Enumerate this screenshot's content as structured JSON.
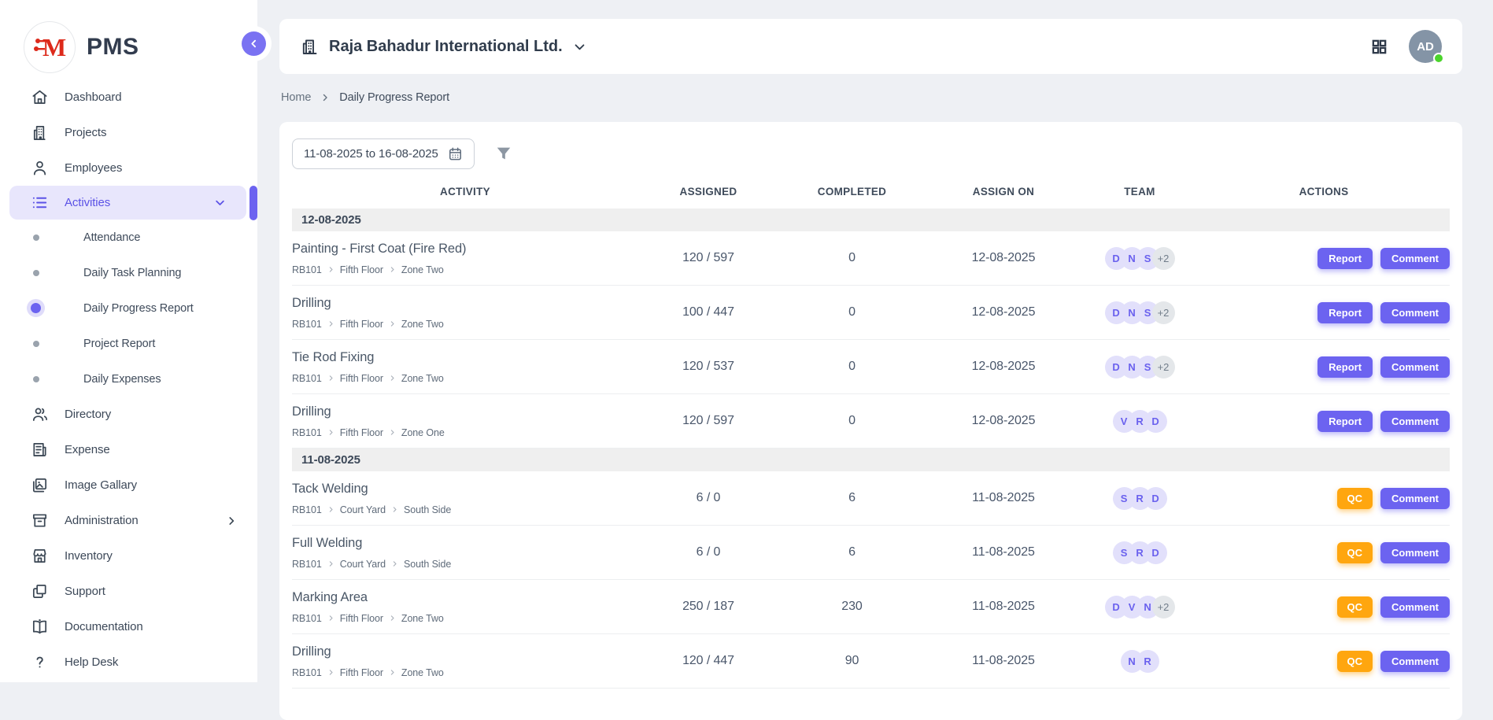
{
  "app": {
    "name": "PMS"
  },
  "topbar": {
    "company": "Raja Bahadur International Ltd.",
    "avatar_initials": "AD"
  },
  "breadcrumb": {
    "home": "Home",
    "current": "Daily Progress Report"
  },
  "filters": {
    "date_range": "11-08-2025 to 16-08-2025"
  },
  "sidebar": {
    "items": [
      {
        "label": "Dashboard",
        "icon": "home-icon"
      },
      {
        "label": "Projects",
        "icon": "building-icon"
      },
      {
        "label": "Employees",
        "icon": "person-icon"
      },
      {
        "label": "Activities",
        "icon": "list-icon",
        "active": true,
        "expanded": true,
        "children": [
          {
            "label": "Attendance",
            "active": false
          },
          {
            "label": "Daily Task Planning",
            "active": false
          },
          {
            "label": "Daily Progress Report",
            "active": true
          },
          {
            "label": "Project Report",
            "active": false
          },
          {
            "label": "Daily Expenses",
            "active": false
          }
        ]
      },
      {
        "label": "Directory",
        "icon": "people-icon"
      },
      {
        "label": "Expense",
        "icon": "receipt-icon"
      },
      {
        "label": "Image Gallary",
        "icon": "image-icon"
      },
      {
        "label": "Administration",
        "icon": "archive-icon",
        "has_submenu": true
      },
      {
        "label": "Inventory",
        "icon": "store-icon"
      },
      {
        "label": "Support",
        "icon": "layers-icon"
      },
      {
        "label": "Documentation",
        "icon": "book-icon"
      },
      {
        "label": "Help Desk",
        "icon": "help-icon"
      }
    ]
  },
  "table": {
    "columns": [
      {
        "key": "activity",
        "label": "ACTIVITY"
      },
      {
        "key": "assigned",
        "label": "ASSIGNED"
      },
      {
        "key": "completed",
        "label": "COMPLETED"
      },
      {
        "key": "assign_on",
        "label": "ASSIGN ON"
      },
      {
        "key": "team",
        "label": "TEAM"
      },
      {
        "key": "actions",
        "label": "ACTIONS"
      }
    ],
    "groups": [
      {
        "date": "12-08-2025",
        "rows": [
          {
            "activity": "Painting - First Coat (Fire Red)",
            "path": [
              "RB101",
              "Fifth Floor",
              "Zone Two"
            ],
            "assigned": "120 / 597",
            "completed": "0",
            "assign_on": "12-08-2025",
            "team": [
              "D",
              "N",
              "S"
            ],
            "team_more": "+2",
            "primary_action": "Report",
            "secondary_action": "Comment"
          },
          {
            "activity": "Drilling",
            "path": [
              "RB101",
              "Fifth Floor",
              "Zone Two"
            ],
            "assigned": "100 / 447",
            "completed": "0",
            "assign_on": "12-08-2025",
            "team": [
              "D",
              "N",
              "S"
            ],
            "team_more": "+2",
            "primary_action": "Report",
            "secondary_action": "Comment"
          },
          {
            "activity": "Tie Rod Fixing",
            "path": [
              "RB101",
              "Fifth Floor",
              "Zone Two"
            ],
            "assigned": "120 / 537",
            "completed": "0",
            "assign_on": "12-08-2025",
            "team": [
              "D",
              "N",
              "S"
            ],
            "team_more": "+2",
            "primary_action": "Report",
            "secondary_action": "Comment"
          },
          {
            "activity": "Drilling",
            "path": [
              "RB101",
              "Fifth Floor",
              "Zone One"
            ],
            "assigned": "120 / 597",
            "completed": "0",
            "assign_on": "12-08-2025",
            "team": [
              "V",
              "R",
              "D"
            ],
            "team_more": null,
            "primary_action": "Report",
            "secondary_action": "Comment"
          }
        ]
      },
      {
        "date": "11-08-2025",
        "rows": [
          {
            "activity": "Tack Welding",
            "path": [
              "RB101",
              "Court Yard",
              "South Side"
            ],
            "assigned": "6 / 0",
            "completed": "6",
            "assign_on": "11-08-2025",
            "team": [
              "S",
              "R",
              "D"
            ],
            "team_more": null,
            "primary_action": "QC",
            "secondary_action": "Comment"
          },
          {
            "activity": "Full Welding",
            "path": [
              "RB101",
              "Court Yard",
              "South Side"
            ],
            "assigned": "6 / 0",
            "completed": "6",
            "assign_on": "11-08-2025",
            "team": [
              "S",
              "R",
              "D"
            ],
            "team_more": null,
            "primary_action": "QC",
            "secondary_action": "Comment"
          },
          {
            "activity": "Marking Area",
            "path": [
              "RB101",
              "Fifth Floor",
              "Zone Two"
            ],
            "assigned": "250 / 187",
            "completed": "230",
            "assign_on": "11-08-2025",
            "team": [
              "D",
              "V",
              "N"
            ],
            "team_more": "+2",
            "primary_action": "QC",
            "secondary_action": "Comment"
          },
          {
            "activity": "Drilling",
            "path": [
              "RB101",
              "Fifth Floor",
              "Zone Two"
            ],
            "assigned": "120 / 447",
            "completed": "90",
            "assign_on": "11-08-2025",
            "team": [
              "N",
              "R"
            ],
            "team_more": null,
            "primary_action": "QC",
            "secondary_action": "Comment"
          }
        ]
      }
    ]
  },
  "colors": {
    "accent": "#6c63f0",
    "accent_light": "#e2e0fb",
    "qc_orange": "#ffa60f",
    "status_green": "#4bd42c",
    "logo_red": "#dd2a1b",
    "page_bg": "#eef0f4"
  }
}
